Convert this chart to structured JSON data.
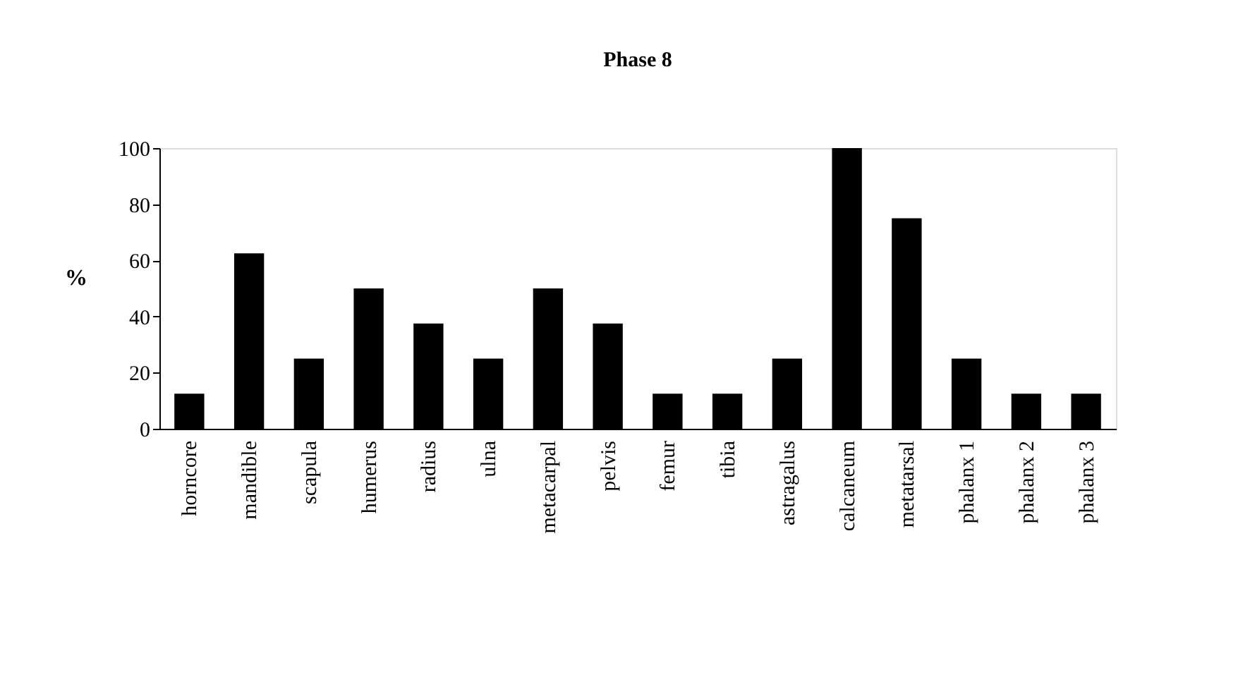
{
  "chart_data": {
    "type": "bar",
    "title": "Phase 8",
    "ylabel": "%",
    "categories": [
      "horncore",
      "mandible",
      "scapula",
      "humerus",
      "radius",
      "ulna",
      "metacarpal",
      "pelvis",
      "femur",
      "tibia",
      "astragalus",
      "calcaneum",
      "metatarsal",
      "phalanx 1",
      "phalanx 2",
      "phalanx 3"
    ],
    "values": [
      12.5,
      62.5,
      25,
      50,
      37.5,
      25,
      50,
      37.5,
      12.5,
      12.5,
      25,
      100,
      75,
      25,
      12.5,
      12.5
    ],
    "color": "#000000",
    "ylim": [
      0,
      100
    ],
    "yticks": [
      0,
      20,
      40,
      60,
      80,
      100
    ],
    "grid": false
  }
}
